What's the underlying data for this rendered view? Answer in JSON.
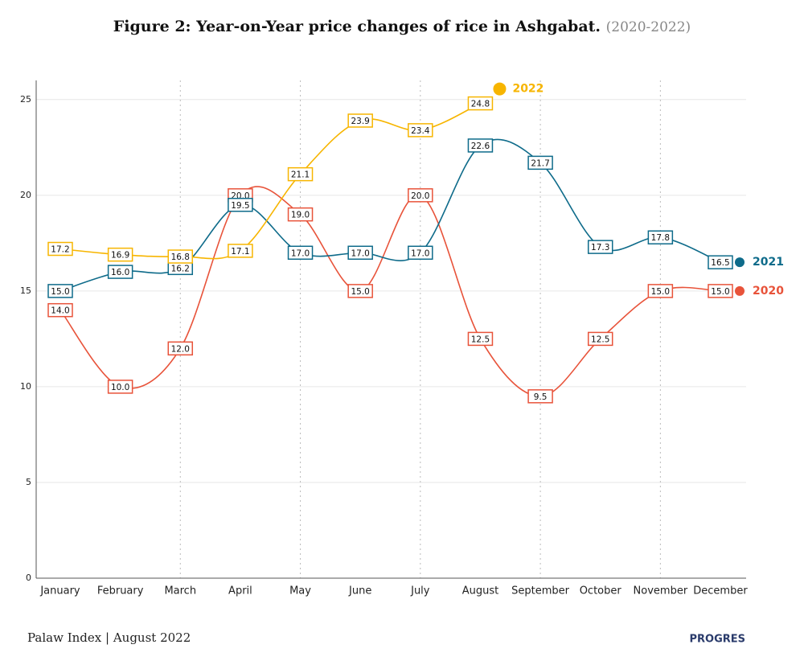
{
  "chart_data": {
    "type": "line",
    "title": "Figure 2: Year-on-Year price changes of rice in Ashgabat.",
    "subtitle": "(2020-2022)",
    "source": "Palaw Index | August 2022",
    "logo": "PROGRES",
    "categories": [
      "January",
      "February",
      "March",
      "April",
      "May",
      "June",
      "July",
      "August",
      "September",
      "October",
      "November",
      "December"
    ],
    "series": [
      {
        "name": "2020",
        "color": "#e8533a",
        "values": [
          14,
          10,
          12,
          20,
          19,
          15,
          20,
          12.5,
          9.5,
          12.5,
          15,
          15
        ],
        "value_labels": [
          "14.0",
          "10.0",
          "12.0",
          "20.0",
          "19.0",
          "15.0",
          "20.0",
          "12.5",
          "9.5",
          "12.5",
          "15.0",
          "15.0"
        ]
      },
      {
        "name": "2021",
        "color": "#0e6b8a",
        "values": [
          15,
          16,
          16.2,
          19.5,
          17,
          17,
          17,
          22.6,
          21.7,
          17.3,
          17.8,
          16.5
        ],
        "value_labels": [
          "15.0",
          "16.0",
          "16.2",
          "19.5",
          "17.0",
          "17.0",
          "17.0",
          "22.6",
          "21.7",
          "17.3",
          "17.8",
          "16.5"
        ]
      },
      {
        "name": "2022",
        "color": "#f7b500",
        "values": [
          17.2,
          16.9,
          16.8,
          17.1,
          21.1,
          23.9,
          23.4,
          24.8,
          null,
          null,
          null,
          null
        ],
        "value_labels": [
          "17.2",
          "16.9",
          "16.8",
          "17.1",
          "21.1",
          "23.9",
          "23.4",
          "24.8",
          null,
          null,
          null,
          null
        ]
      }
    ],
    "ylim": [
      0,
      26
    ],
    "yticks": [
      0,
      5,
      10,
      15,
      20,
      25
    ],
    "grid": true
  }
}
